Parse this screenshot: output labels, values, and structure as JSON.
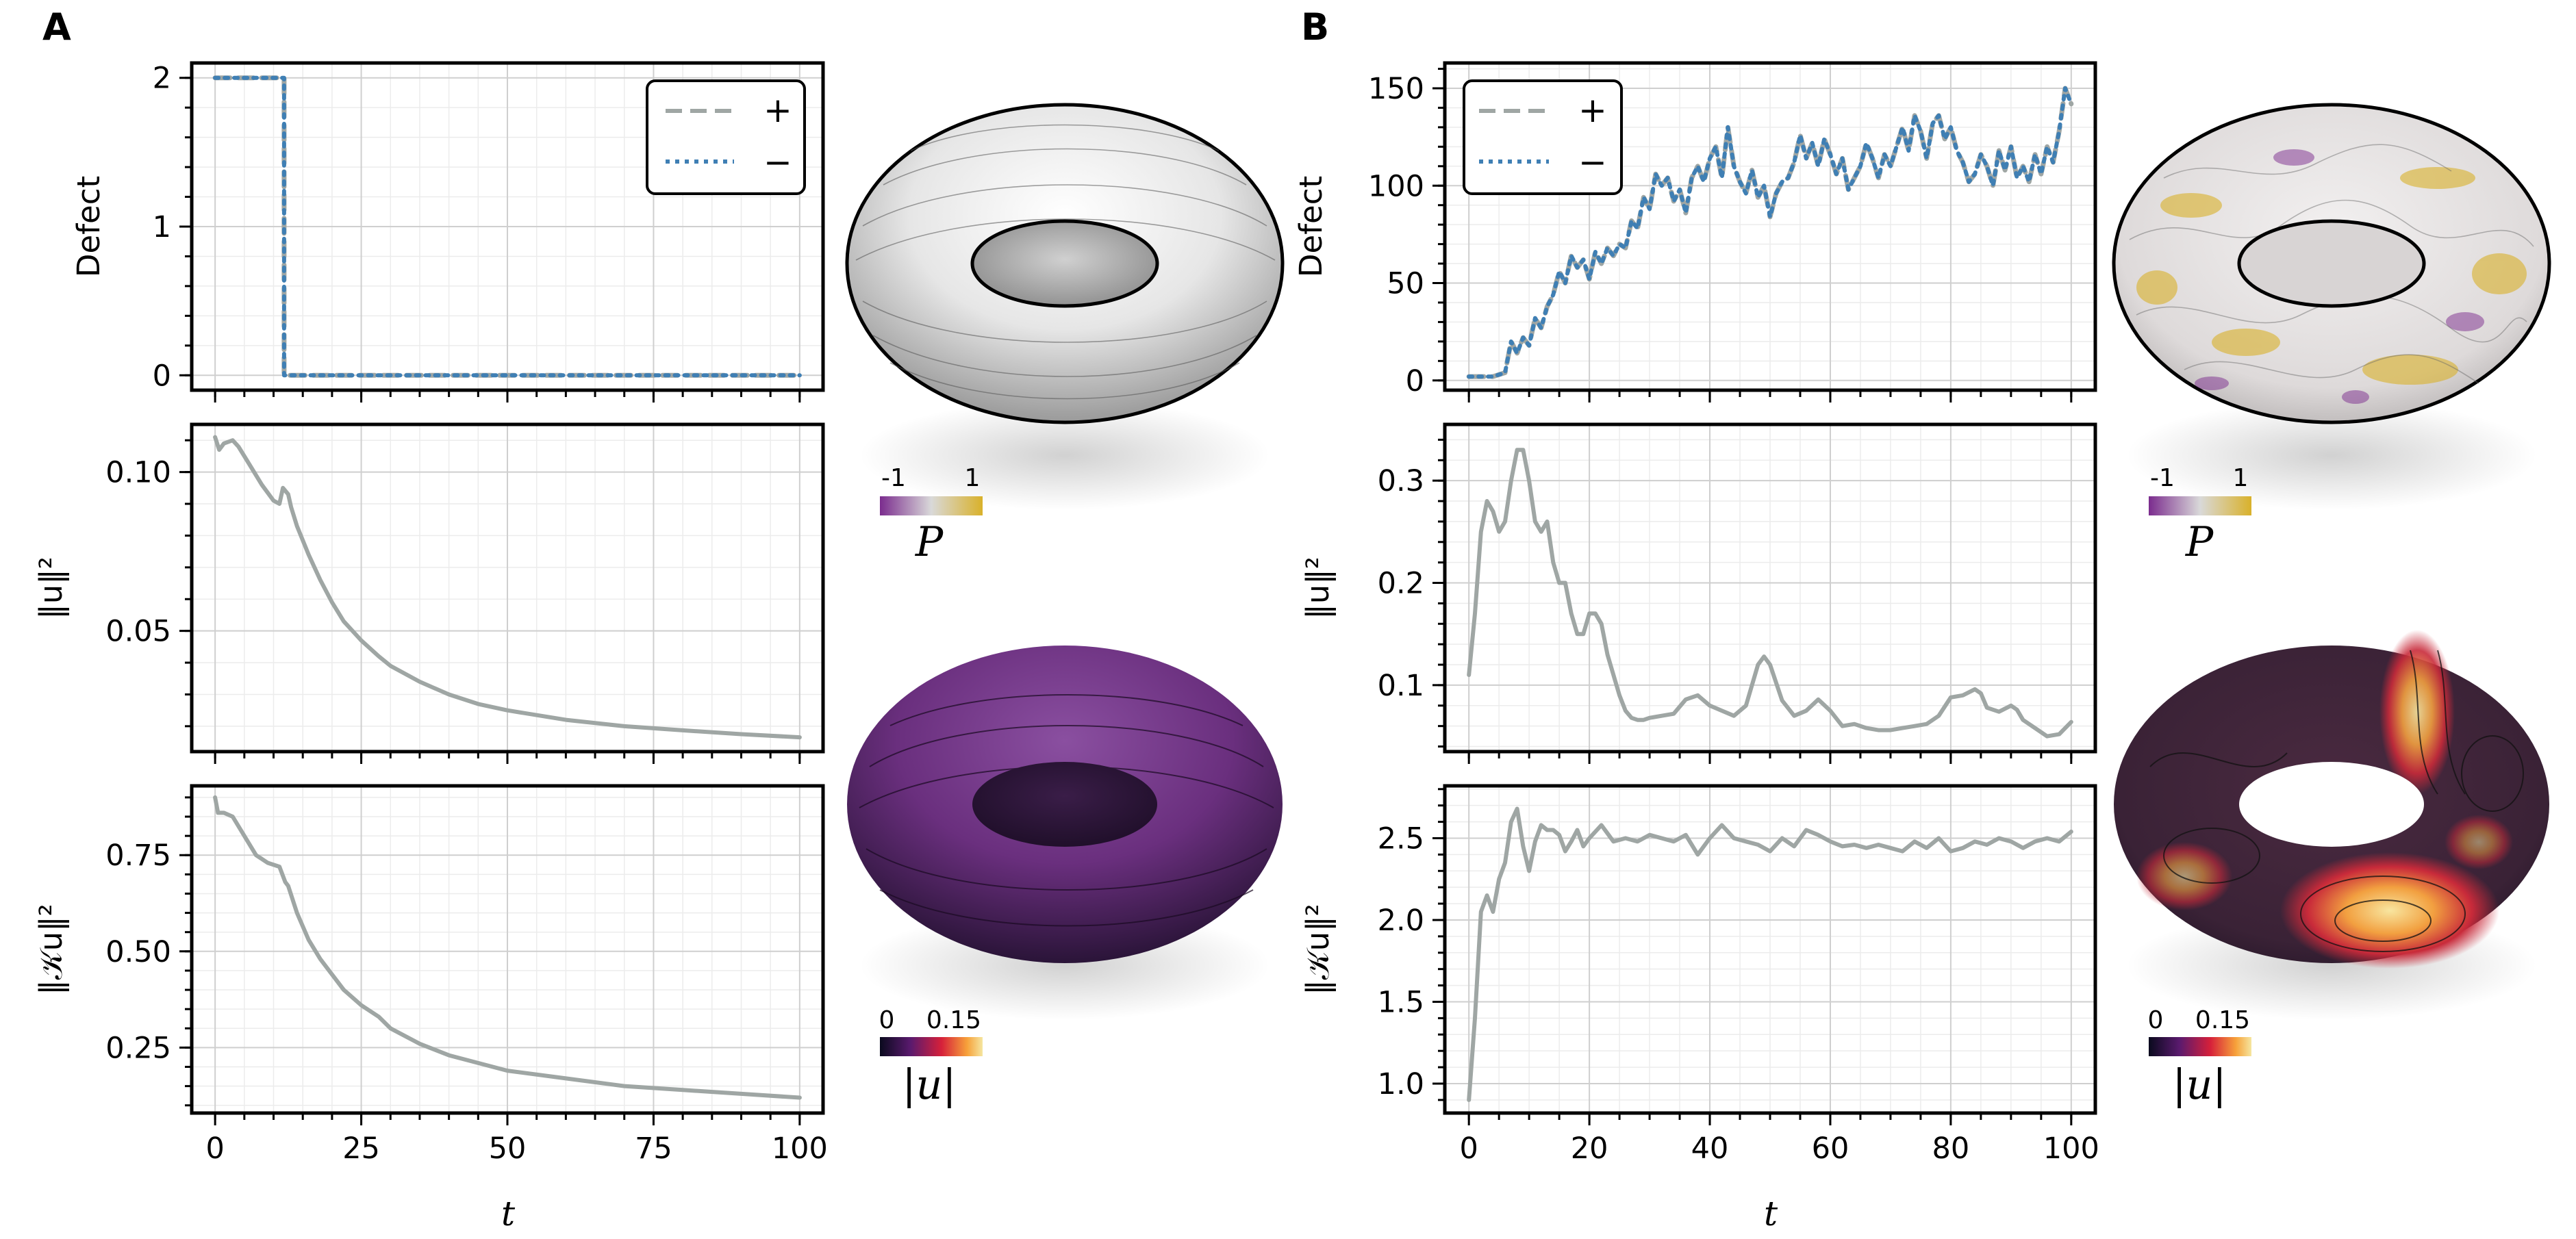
{
  "panels": {
    "A": {
      "letter": "A",
      "xlabel": "t",
      "xticks": [
        "0",
        "25",
        "50",
        "75",
        "100"
      ],
      "legend": {
        "plus": "+",
        "minus": "−"
      },
      "colorbars": [
        {
          "tick_low": "-1",
          "tick_high": "1",
          "label": "P"
        },
        {
          "tick_low": "0",
          "tick_high": "0.15",
          "label": "|u|"
        }
      ]
    },
    "B": {
      "letter": "B",
      "xlabel": "t",
      "xticks": [
        "0",
        "20",
        "40",
        "60",
        "80",
        "100"
      ],
      "legend": {
        "plus": "+",
        "minus": "−"
      },
      "colorbars": [
        {
          "tick_low": "-1",
          "tick_high": "1",
          "label": "P"
        },
        {
          "tick_low": "0",
          "tick_high": "0.15",
          "label": "|u|"
        }
      ]
    }
  },
  "colors": {
    "plus": "#9fa6a4",
    "minus": "#3f7fb4",
    "line": "#9fa6a4",
    "cbar_P": [
      "#7b2c8e",
      "#d9d9d9",
      "#d9b12a"
    ],
    "cbar_u": [
      "#0a0a1e",
      "#5a1a6e",
      "#d6203a",
      "#f7a23a",
      "#f5e6a0"
    ]
  },
  "chart_data": [
    {
      "id": "A-defect",
      "type": "line",
      "ylabel": "Defect",
      "xlim": [
        -4,
        104
      ],
      "ylim": [
        -0.1,
        2.1
      ],
      "yticks": [
        0,
        1,
        2
      ],
      "ytick_labels": [
        "0",
        "1",
        "2"
      ],
      "series": [
        {
          "name": "+",
          "style": "dashed",
          "x": [
            0,
            11.8,
            11.8,
            100
          ],
          "y": [
            2,
            2,
            0,
            0
          ]
        },
        {
          "name": "−",
          "style": "dotted",
          "x": [
            0,
            11.8,
            11.8,
            100
          ],
          "y": [
            2,
            2,
            0,
            0
          ]
        }
      ]
    },
    {
      "id": "A-energy",
      "type": "line",
      "ylabel": "‖u‖²",
      "xlim": [
        -4,
        104
      ],
      "ylim": [
        0.012,
        0.115
      ],
      "yticks": [
        0.05,
        0.1
      ],
      "ytick_labels": [
        "0.05",
        "0.10"
      ],
      "series": [
        {
          "name": "‖u‖²",
          "style": "solid",
          "x": [
            0,
            0.7,
            1.5,
            3,
            4,
            6,
            8,
            10,
            11,
            11.6,
            12.5,
            13,
            14,
            16,
            18,
            20,
            22,
            25,
            28,
            30,
            35,
            40,
            45,
            50,
            60,
            70,
            80,
            90,
            100
          ],
          "y": [
            0.111,
            0.107,
            0.109,
            0.11,
            0.108,
            0.102,
            0.096,
            0.091,
            0.09,
            0.095,
            0.093,
            0.089,
            0.083,
            0.074,
            0.066,
            0.059,
            0.053,
            0.047,
            0.042,
            0.039,
            0.034,
            0.03,
            0.027,
            0.025,
            0.022,
            0.02,
            0.0187,
            0.0175,
            0.0165
          ]
        }
      ]
    },
    {
      "id": "A-enstrophy",
      "type": "line",
      "ylabel": "‖𝒦u‖²",
      "xlim": [
        -4,
        104
      ],
      "ylim": [
        0.08,
        0.93
      ],
      "yticks": [
        0.25,
        0.5,
        0.75
      ],
      "ytick_labels": [
        "0.25",
        "0.50",
        "0.75"
      ],
      "series": [
        {
          "name": "‖𝒦u‖²",
          "style": "solid",
          "x": [
            0,
            0.5,
            1.5,
            3,
            5,
            7,
            9,
            11,
            12,
            12.5,
            14,
            16,
            18,
            20,
            22,
            25,
            28,
            30,
            35,
            40,
            45,
            50,
            60,
            70,
            80,
            90,
            100
          ],
          "y": [
            0.9,
            0.86,
            0.86,
            0.85,
            0.8,
            0.75,
            0.73,
            0.72,
            0.68,
            0.67,
            0.6,
            0.53,
            0.48,
            0.44,
            0.4,
            0.36,
            0.33,
            0.3,
            0.26,
            0.23,
            0.21,
            0.19,
            0.17,
            0.15,
            0.14,
            0.13,
            0.12
          ]
        }
      ]
    },
    {
      "id": "B-defect",
      "type": "line",
      "ylabel": "Defect",
      "xlim": [
        -4,
        104
      ],
      "ylim": [
        -5,
        163
      ],
      "yticks": [
        0,
        50,
        100,
        150
      ],
      "ytick_labels": [
        "0",
        "50",
        "100",
        "150"
      ],
      "series": [
        {
          "name": "+",
          "style": "dashed",
          "x": [
            0,
            2,
            4,
            6,
            7,
            8,
            9,
            10,
            11,
            12,
            13,
            14,
            15,
            16,
            17,
            18,
            19,
            20,
            21,
            22,
            23,
            24,
            25,
            26,
            27,
            28,
            29,
            30,
            31,
            32,
            33,
            34,
            35,
            36,
            37,
            38,
            39,
            40,
            41,
            42,
            43,
            44,
            45,
            46,
            47,
            48,
            49,
            50,
            51,
            52,
            53,
            54,
            55,
            56,
            57,
            58,
            59,
            60,
            61,
            62,
            63,
            64,
            65,
            66,
            67,
            68,
            69,
            70,
            71,
            72,
            73,
            74,
            75,
            76,
            77,
            78,
            79,
            80,
            81,
            82,
            83,
            84,
            85,
            86,
            87,
            88,
            89,
            90,
            91,
            92,
            93,
            94,
            95,
            96,
            97,
            98,
            99,
            100
          ],
          "y": [
            2,
            2,
            2,
            4,
            20,
            14,
            22,
            18,
            32,
            27,
            38,
            44,
            56,
            50,
            64,
            58,
            62,
            52,
            66,
            60,
            68,
            64,
            70,
            68,
            82,
            78,
            94,
            88,
            106,
            100,
            104,
            92,
            98,
            86,
            104,
            110,
            102,
            114,
            120,
            104,
            130,
            110,
            102,
            96,
            108,
            94,
            100,
            84,
            96,
            102,
            104,
            112,
            126,
            114,
            122,
            110,
            124,
            116,
            106,
            114,
            98,
            104,
            110,
            122,
            114,
            104,
            116,
            110,
            120,
            130,
            118,
            136,
            128,
            114,
            132,
            136,
            124,
            130,
            118,
            112,
            102,
            106,
            116,
            110,
            100,
            118,
            108,
            120,
            104,
            110,
            102,
            116,
            106,
            120,
            112,
            128,
            150,
            142
          ]
        },
        {
          "name": "−",
          "style": "dotted",
          "x": [
            0,
            2,
            4,
            6,
            7,
            8,
            9,
            10,
            11,
            12,
            13,
            14,
            15,
            16,
            17,
            18,
            19,
            20,
            21,
            22,
            23,
            24,
            25,
            26,
            27,
            28,
            29,
            30,
            31,
            32,
            33,
            34,
            35,
            36,
            37,
            38,
            39,
            40,
            41,
            42,
            43,
            44,
            45,
            46,
            47,
            48,
            49,
            50,
            51,
            52,
            53,
            54,
            55,
            56,
            57,
            58,
            59,
            60,
            61,
            62,
            63,
            64,
            65,
            66,
            67,
            68,
            69,
            70,
            71,
            72,
            73,
            74,
            75,
            76,
            77,
            78,
            79,
            80,
            81,
            82,
            83,
            84,
            85,
            86,
            87,
            88,
            89,
            90,
            91,
            92,
            93,
            94,
            95,
            96,
            97,
            98,
            99,
            100
          ],
          "y": [
            2,
            2,
            2,
            4,
            20,
            14,
            22,
            18,
            32,
            27,
            38,
            44,
            56,
            50,
            64,
            58,
            62,
            52,
            66,
            60,
            68,
            64,
            70,
            68,
            82,
            78,
            94,
            88,
            106,
            100,
            104,
            92,
            98,
            86,
            104,
            110,
            102,
            114,
            120,
            104,
            130,
            110,
            102,
            96,
            108,
            94,
            100,
            84,
            96,
            102,
            104,
            112,
            126,
            114,
            122,
            110,
            124,
            116,
            106,
            114,
            98,
            104,
            110,
            122,
            114,
            104,
            116,
            110,
            120,
            130,
            118,
            136,
            128,
            114,
            132,
            136,
            124,
            130,
            118,
            112,
            102,
            106,
            116,
            110,
            100,
            118,
            108,
            120,
            104,
            110,
            102,
            116,
            106,
            120,
            112,
            128,
            150,
            142
          ]
        }
      ]
    },
    {
      "id": "B-energy",
      "type": "line",
      "ylabel": "‖u‖²",
      "xlim": [
        -4,
        104
      ],
      "ylim": [
        0.035,
        0.355
      ],
      "yticks": [
        0.1,
        0.2,
        0.3
      ],
      "ytick_labels": [
        "0.1",
        "0.2",
        "0.3"
      ],
      "series": [
        {
          "name": "‖u‖²",
          "style": "solid",
          "x": [
            0,
            1,
            2,
            3,
            4,
            5,
            6,
            7,
            8,
            9,
            10,
            11,
            12,
            13,
            14,
            15,
            16,
            17,
            18,
            19,
            20,
            21,
            22,
            23,
            24,
            25,
            26,
            27,
            28,
            29,
            30,
            32,
            34,
            36,
            38,
            40,
            42,
            44,
            46,
            48,
            49,
            50,
            52,
            54,
            56,
            58,
            60,
            62,
            64,
            66,
            68,
            70,
            72,
            74,
            76,
            78,
            80,
            82,
            84,
            85,
            86,
            88,
            90,
            91,
            92,
            94,
            96,
            98,
            100
          ],
          "y": [
            0.11,
            0.17,
            0.25,
            0.28,
            0.27,
            0.25,
            0.26,
            0.3,
            0.33,
            0.33,
            0.3,
            0.26,
            0.25,
            0.26,
            0.22,
            0.2,
            0.2,
            0.17,
            0.15,
            0.15,
            0.17,
            0.17,
            0.16,
            0.13,
            0.11,
            0.09,
            0.075,
            0.068,
            0.066,
            0.066,
            0.068,
            0.07,
            0.072,
            0.086,
            0.09,
            0.08,
            0.075,
            0.07,
            0.08,
            0.12,
            0.128,
            0.12,
            0.085,
            0.07,
            0.075,
            0.086,
            0.075,
            0.06,
            0.062,
            0.058,
            0.056,
            0.056,
            0.058,
            0.06,
            0.062,
            0.07,
            0.088,
            0.09,
            0.096,
            0.092,
            0.078,
            0.074,
            0.08,
            0.076,
            0.066,
            0.058,
            0.05,
            0.052,
            0.064
          ]
        }
      ]
    },
    {
      "id": "B-enstrophy",
      "type": "line",
      "ylabel": "‖𝒦u‖²",
      "xlim": [
        -4,
        104
      ],
      "ylim": [
        0.82,
        2.82
      ],
      "yticks": [
        1.0,
        1.5,
        2.0,
        2.5
      ],
      "ytick_labels": [
        "1.0",
        "1.5",
        "2.0",
        "2.5"
      ],
      "series": [
        {
          "name": "‖𝒦u‖²",
          "style": "solid",
          "x": [
            0,
            1,
            2,
            3,
            4,
            5,
            6,
            7,
            8,
            9,
            10,
            11,
            12,
            13,
            14,
            15,
            16,
            17,
            18,
            19,
            20,
            22,
            24,
            26,
            28,
            30,
            32,
            34,
            36,
            38,
            40,
            42,
            44,
            46,
            48,
            50,
            52,
            54,
            56,
            58,
            60,
            62,
            64,
            66,
            68,
            70,
            72,
            74,
            76,
            78,
            80,
            82,
            84,
            86,
            88,
            90,
            92,
            94,
            96,
            98,
            100
          ],
          "y": [
            0.9,
            1.4,
            2.05,
            2.15,
            2.05,
            2.25,
            2.35,
            2.6,
            2.68,
            2.45,
            2.3,
            2.48,
            2.58,
            2.55,
            2.55,
            2.52,
            2.42,
            2.48,
            2.55,
            2.45,
            2.5,
            2.58,
            2.48,
            2.5,
            2.48,
            2.52,
            2.5,
            2.48,
            2.52,
            2.4,
            2.5,
            2.58,
            2.5,
            2.48,
            2.46,
            2.42,
            2.5,
            2.45,
            2.55,
            2.52,
            2.48,
            2.45,
            2.46,
            2.44,
            2.46,
            2.44,
            2.42,
            2.48,
            2.44,
            2.5,
            2.42,
            2.44,
            2.48,
            2.46,
            2.5,
            2.48,
            2.44,
            2.48,
            2.5,
            2.48,
            2.54
          ]
        }
      ]
    }
  ]
}
